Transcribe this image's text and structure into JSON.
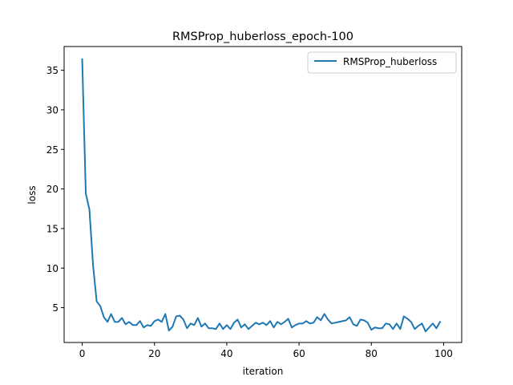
{
  "chart_data": {
    "type": "line",
    "title": "RMSProp_huberloss_epoch-100",
    "xlabel": "iteration",
    "ylabel": "loss",
    "xlim": [
      -5,
      105
    ],
    "ylim": [
      0.6,
      38.0
    ],
    "xticks": [
      0,
      20,
      40,
      60,
      80,
      100
    ],
    "yticks": [
      5,
      10,
      15,
      20,
      25,
      30,
      35
    ],
    "grid": false,
    "legend_position": "top-right",
    "series": [
      {
        "name": "RMSProp_huberloss",
        "color": "#1f77b4",
        "x": [
          0,
          1,
          2,
          3,
          4,
          5,
          6,
          7,
          8,
          9,
          10,
          11,
          12,
          13,
          14,
          15,
          16,
          17,
          18,
          19,
          20,
          21,
          22,
          23,
          24,
          25,
          26,
          27,
          28,
          29,
          30,
          31,
          32,
          33,
          34,
          35,
          36,
          37,
          38,
          39,
          40,
          41,
          42,
          43,
          44,
          45,
          46,
          47,
          48,
          49,
          50,
          51,
          52,
          53,
          54,
          55,
          56,
          57,
          58,
          59,
          60,
          61,
          62,
          63,
          64,
          65,
          66,
          67,
          68,
          69,
          70,
          71,
          72,
          73,
          74,
          75,
          76,
          77,
          78,
          79,
          80,
          81,
          82,
          83,
          84,
          85,
          86,
          87,
          88,
          89,
          90,
          91,
          92,
          93,
          94,
          95,
          96,
          97,
          98,
          99
        ],
        "values": [
          36.4,
          19.4,
          17.4,
          10.4,
          5.8,
          5.2,
          3.8,
          3.2,
          4.2,
          3.2,
          3.2,
          3.7,
          2.9,
          3.2,
          2.8,
          2.8,
          3.3,
          2.5,
          2.8,
          2.7,
          3.3,
          3.5,
          3.2,
          4.2,
          2.1,
          2.6,
          3.9,
          4.0,
          3.5,
          2.4,
          3.0,
          2.8,
          3.7,
          2.6,
          3.0,
          2.4,
          2.4,
          2.3,
          3.0,
          2.3,
          2.8,
          2.3,
          3.1,
          3.5,
          2.5,
          2.9,
          2.3,
          2.7,
          3.1,
          2.9,
          3.1,
          2.8,
          3.3,
          2.5,
          3.2,
          2.9,
          3.2,
          3.6,
          2.5,
          2.8,
          3.0,
          3.0,
          3.3,
          3.0,
          3.1,
          3.8,
          3.4,
          4.2,
          3.5,
          3.0,
          3.1,
          3.2,
          3.3,
          3.4,
          3.8,
          2.9,
          2.7,
          3.5,
          3.4,
          3.1,
          2.2,
          2.5,
          2.4,
          2.4,
          3.0,
          2.9,
          2.3,
          3.0,
          2.3,
          3.9,
          3.6,
          3.2,
          2.3,
          2.7,
          3.0,
          2.0,
          2.5,
          3.0,
          2.4,
          3.2
        ]
      }
    ]
  }
}
